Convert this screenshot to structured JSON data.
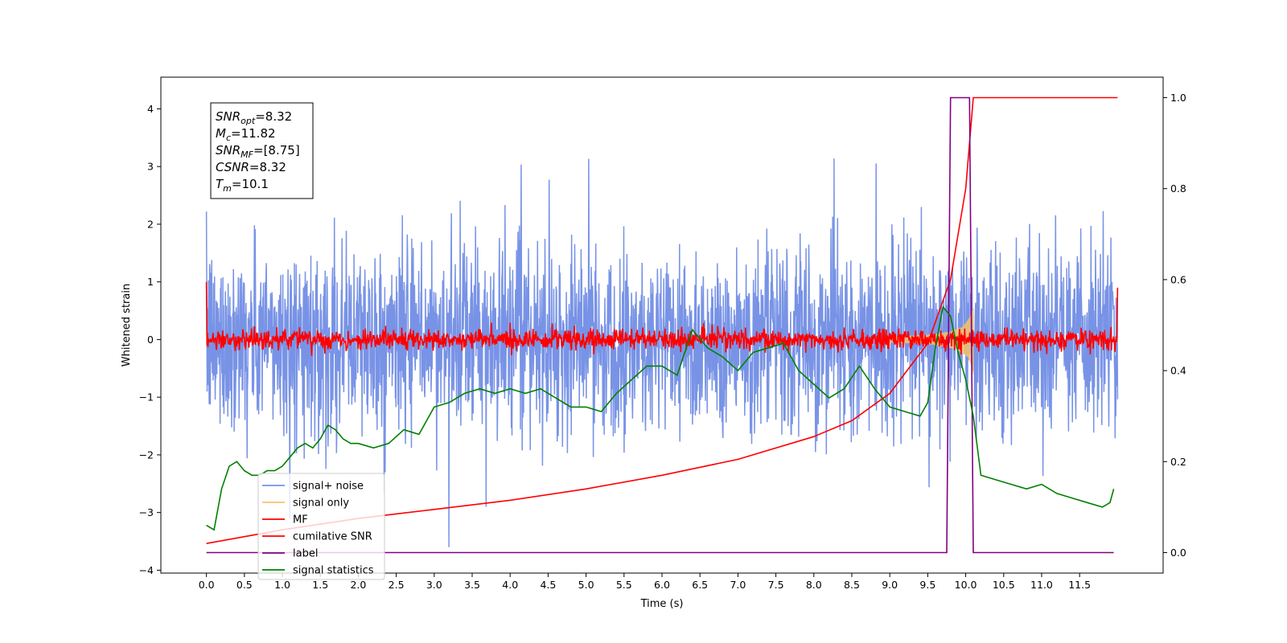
{
  "chart_data": {
    "type": "line",
    "xlabel": "Time (s)",
    "ylabel": "Whitened strain",
    "xlim": [
      -0.6,
      12.6
    ],
    "ylim": [
      -4.05,
      4.55
    ],
    "y2lim": [
      -0.045,
      1.045
    ],
    "x_ticks": [
      "0.0",
      "0.5",
      "1.0",
      "1.5",
      "2.0",
      "2.5",
      "3.0",
      "3.5",
      "4.0",
      "4.5",
      "5.0",
      "5.5",
      "6.0",
      "6.5",
      "7.0",
      "7.5",
      "8.0",
      "8.5",
      "9.0",
      "9.5",
      "10.0",
      "10.5",
      "11.0",
      "11.5"
    ],
    "y_ticks": [
      "−4",
      "−3",
      "−2",
      "−1",
      "0",
      "1",
      "2",
      "3",
      "4"
    ],
    "y2_ticks": [
      "0.0",
      "0.2",
      "0.4",
      "0.6",
      "0.8",
      "1.0"
    ],
    "series": [
      {
        "name": "signal+ noise",
        "color": "#7893e6",
        "axis": "left",
        "noise_std": 0.8,
        "duration": 12.0
      },
      {
        "name": "signal only",
        "color": "#f5c26b",
        "axis": "left",
        "chirp_peak_amplitude": 0.6,
        "merger_time": 10.1
      },
      {
        "name": "MF",
        "color": "#ff0000",
        "axis": "left",
        "noise_std": 0.09
      },
      {
        "name": "cumilative SNR",
        "color": "#ff0000",
        "axis": "right",
        "x": [
          0.0,
          1.0,
          2.0,
          3.0,
          4.0,
          5.0,
          6.0,
          7.0,
          8.0,
          8.5,
          9.0,
          9.5,
          9.8,
          10.0,
          10.1,
          12.0
        ],
        "y": [
          0.02,
          0.05,
          0.075,
          0.095,
          0.115,
          0.14,
          0.17,
          0.205,
          0.255,
          0.29,
          0.35,
          0.46,
          0.6,
          0.8,
          1.0,
          1.0
        ]
      },
      {
        "name": "label",
        "color": "#800080",
        "axis": "right",
        "x": [
          0.0,
          9.75,
          9.8,
          10.05,
          10.1,
          11.95
        ],
        "y": [
          0.0,
          0.0,
          1.0,
          1.0,
          0.0,
          0.0
        ]
      },
      {
        "name": "signal statistics",
        "color": "#008000",
        "axis": "right",
        "x": [
          0.0,
          0.1,
          0.2,
          0.3,
          0.4,
          0.5,
          0.6,
          0.7,
          0.8,
          0.9,
          1.0,
          1.1,
          1.2,
          1.3,
          1.4,
          1.5,
          1.6,
          1.7,
          1.8,
          1.9,
          2.0,
          2.2,
          2.4,
          2.6,
          2.8,
          3.0,
          3.2,
          3.4,
          3.6,
          3.8,
          4.0,
          4.2,
          4.4,
          4.6,
          4.8,
          5.0,
          5.2,
          5.4,
          5.6,
          5.8,
          6.0,
          6.2,
          6.3,
          6.4,
          6.6,
          6.8,
          7.0,
          7.2,
          7.4,
          7.6,
          7.8,
          8.0,
          8.2,
          8.4,
          8.6,
          8.8,
          9.0,
          9.2,
          9.4,
          9.5,
          9.6,
          9.7,
          9.8,
          9.9,
          10.0,
          10.1,
          10.2,
          10.4,
          10.6,
          10.8,
          11.0,
          11.2,
          11.4,
          11.6,
          11.8,
          11.9,
          11.95
        ],
        "y": [
          0.06,
          0.05,
          0.14,
          0.19,
          0.2,
          0.18,
          0.17,
          0.17,
          0.18,
          0.18,
          0.19,
          0.21,
          0.23,
          0.24,
          0.23,
          0.25,
          0.28,
          0.27,
          0.25,
          0.24,
          0.24,
          0.23,
          0.24,
          0.27,
          0.26,
          0.32,
          0.33,
          0.35,
          0.36,
          0.35,
          0.36,
          0.35,
          0.36,
          0.34,
          0.32,
          0.32,
          0.31,
          0.35,
          0.38,
          0.41,
          0.41,
          0.39,
          0.44,
          0.49,
          0.45,
          0.43,
          0.4,
          0.44,
          0.45,
          0.46,
          0.4,
          0.37,
          0.34,
          0.36,
          0.41,
          0.36,
          0.32,
          0.31,
          0.3,
          0.33,
          0.45,
          0.54,
          0.52,
          0.44,
          0.38,
          0.3,
          0.17,
          0.16,
          0.15,
          0.14,
          0.15,
          0.13,
          0.12,
          0.11,
          0.1,
          0.11,
          0.14
        ]
      }
    ],
    "annotation": {
      "lines": [
        {
          "main": "SNR",
          "sub": "opt",
          "value": "=8.32"
        },
        {
          "main": "M",
          "sub": "c",
          "value": "=11.82"
        },
        {
          "main": "SNR",
          "sub": "MF",
          "value": "=[8.75]"
        },
        {
          "main": "CSNR",
          "sub": "",
          "value": "=8.32"
        },
        {
          "main": "T",
          "sub": "m",
          "value": "=10.1"
        }
      ]
    },
    "legend": {
      "placement": "lower-left",
      "entries": [
        {
          "label": "signal+ noise",
          "color": "#7893e6"
        },
        {
          "label": "signal only",
          "color": "#f5c26b"
        },
        {
          "label": "MF",
          "color": "#ff0000"
        },
        {
          "label": "cumilative SNR",
          "color": "#ff0000"
        },
        {
          "label": "label",
          "color": "#800080"
        },
        {
          "label": "signal statistics",
          "color": "#008000"
        }
      ]
    }
  }
}
